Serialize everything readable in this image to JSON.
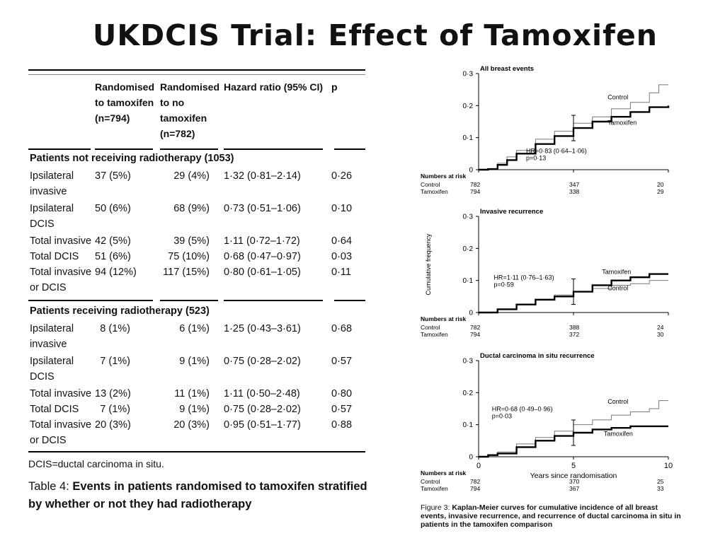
{
  "title": "UKDCIS Trial: Effect of Tamoxifen",
  "table": {
    "headers": [
      "Randomised to tamoxifen (n=794)",
      "Randomised to no tamoxifen (n=782)",
      "Hazard ratio (95% CI)",
      "p"
    ],
    "sections": [
      {
        "heading": "Patients not receiving radiotherapy (1053)",
        "rows": [
          [
            "Ipsilateral invasive",
            "37 (5%)",
            "29 (4%)",
            "1·32 (0·81–2·14)",
            "0·26"
          ],
          [
            "Ipsilateral DCIS",
            "50 (6%)",
            "68 (9%)",
            "0·73 (0·51–1·06)",
            "0·10"
          ],
          [
            "Total invasive",
            "42 (5%)",
            "39 (5%)",
            "1·11 (0·72–1·72)",
            "0·64"
          ],
          [
            "Total DCIS",
            "51 (6%)",
            "75 (10%)",
            "0·68 (0·47–0·97)",
            "0·03"
          ],
          [
            "Total invasive or DCIS",
            "94 (12%)",
            "117 (15%)",
            "0·80 (0·61–1·05)",
            "0·11"
          ]
        ]
      },
      {
        "heading": "Patients receiving radiotherapy (523)",
        "rows": [
          [
            "Ipsilateral invasive",
            "8 (1%)",
            "6 (1%)",
            "1·25 (0·43–3·61)",
            "0·68"
          ],
          [
            "Ipsilateral DCIS",
            "7 (1%)",
            "9 (1%)",
            "0·75 (0·28–2·02)",
            "0·57"
          ],
          [
            "Total invasive",
            "13 (2%)",
            "11 (1%)",
            "1·11 (0·50–2·48)",
            "0·80"
          ],
          [
            "Total DCIS",
            "7 (1%)",
            "9 (1%)",
            "0·75 (0·28–2·02)",
            "0·57"
          ],
          [
            "Total invasive or DCIS",
            "20 (3%)",
            "20 (3%)",
            "0·95 (0·51–1·77)",
            "0·88"
          ]
        ]
      }
    ],
    "footnote": "DCIS=ductal carcinoma in situ.",
    "caption_label": "Table 4: ",
    "caption_text": "Events in patients randomised to tamoxifen stratified by whether or not they had radiotherapy"
  },
  "figure": {
    "ylabel": "Cumulative frequency",
    "xlabel": "Years since randomisation",
    "x_ticks": [
      "0",
      "5",
      "10"
    ],
    "y_ticks": [
      "0",
      "0·1",
      "0·2",
      "0·3"
    ],
    "risk_heading": "Numbers at risk",
    "panels": [
      {
        "title": "All breast events",
        "hr": "HR=0·83 (0·64–1·06)",
        "p": "p=0·13",
        "control_label": "Control",
        "tamoxifen_label": "Tamoxifen",
        "risk": [
          [
            "Control",
            "782",
            "347",
            "20"
          ],
          [
            "Tamoxifen",
            "794",
            "338",
            "29"
          ]
        ]
      },
      {
        "title": "Invasive recurrence",
        "hr": "HR=1·11 (0·76–1·63)",
        "p": "p=0·59",
        "control_label": "Control",
        "tamoxifen_label": "Tamoxifen",
        "risk": [
          [
            "Control",
            "782",
            "388",
            "24"
          ],
          [
            "Tamoxifen",
            "794",
            "372",
            "30"
          ]
        ]
      },
      {
        "title": "Ductal carcinoma in situ recurrence",
        "hr": "HR=0·68 (0·49–0·96)",
        "p": "p=0·03",
        "control_label": "Control",
        "tamoxifen_label": "Tamoxifen",
        "risk": [
          [
            "Control",
            "782",
            "370",
            "25"
          ],
          [
            "Tamoxifen",
            "794",
            "367",
            "33"
          ]
        ]
      }
    ],
    "caption_label": "Figure 3: ",
    "caption_text": "Kaplan-Meier curves for cumulative incidence of all breast events, invasive recurrence, and recurrence of ductal carcinoma in situ in patients in the tamoxifen comparison"
  },
  "chart_data": [
    {
      "type": "line",
      "title": "All breast events",
      "xlabel": "",
      "ylabel": "",
      "xlim": [
        0,
        10
      ],
      "ylim": [
        0,
        0.3
      ],
      "series": [
        {
          "name": "Control",
          "color": "#777777",
          "x": [
            0,
            0.5,
            1,
            1.5,
            2,
            3,
            4,
            5,
            6,
            7,
            8,
            9,
            9.5,
            10
          ],
          "y": [
            0,
            0.003,
            0.02,
            0.04,
            0.06,
            0.095,
            0.12,
            0.145,
            0.165,
            0.19,
            0.21,
            0.24,
            0.265,
            0.265
          ]
        },
        {
          "name": "Tamoxifen",
          "color": "#000000",
          "x": [
            0,
            0.5,
            1,
            1.5,
            2,
            3,
            4,
            5,
            6,
            7,
            8,
            9,
            10
          ],
          "y": [
            0,
            0.002,
            0.015,
            0.03,
            0.05,
            0.08,
            0.105,
            0.13,
            0.15,
            0.165,
            0.18,
            0.195,
            0.2
          ]
        }
      ]
    },
    {
      "type": "line",
      "title": "Invasive recurrence",
      "xlabel": "",
      "ylabel": "Cumulative frequency",
      "xlim": [
        0,
        10
      ],
      "ylim": [
        0,
        0.3
      ],
      "series": [
        {
          "name": "Control",
          "color": "#777777",
          "x": [
            0,
            1,
            2,
            3,
            4,
            5,
            6,
            7,
            8,
            9,
            10
          ],
          "y": [
            0,
            0.01,
            0.025,
            0.04,
            0.055,
            0.065,
            0.075,
            0.085,
            0.09,
            0.1,
            0.1
          ]
        },
        {
          "name": "Tamoxifen",
          "color": "#000000",
          "x": [
            0,
            1,
            2,
            3,
            4,
            5,
            6,
            7,
            8,
            9,
            10
          ],
          "y": [
            0,
            0.01,
            0.025,
            0.04,
            0.05,
            0.065,
            0.085,
            0.1,
            0.11,
            0.12,
            0.12
          ]
        }
      ]
    },
    {
      "type": "line",
      "title": "Ductal carcinoma in situ recurrence",
      "xlabel": "Years since randomisation",
      "ylabel": "",
      "xlim": [
        0,
        10
      ],
      "ylim": [
        0,
        0.3
      ],
      "series": [
        {
          "name": "Control",
          "color": "#777777",
          "x": [
            0,
            0.5,
            1,
            2,
            3,
            4,
            5,
            6,
            7,
            8,
            9,
            9.5,
            10
          ],
          "y": [
            0,
            0.005,
            0.015,
            0.04,
            0.06,
            0.08,
            0.1,
            0.115,
            0.13,
            0.14,
            0.15,
            0.175,
            0.175
          ]
        },
        {
          "name": "Tamoxifen",
          "color": "#000000",
          "x": [
            0,
            0.5,
            1,
            2,
            3,
            4,
            5,
            6,
            7,
            8,
            9,
            10
          ],
          "y": [
            0,
            0.005,
            0.01,
            0.03,
            0.05,
            0.065,
            0.075,
            0.085,
            0.09,
            0.095,
            0.095,
            0.095
          ]
        }
      ]
    }
  ]
}
